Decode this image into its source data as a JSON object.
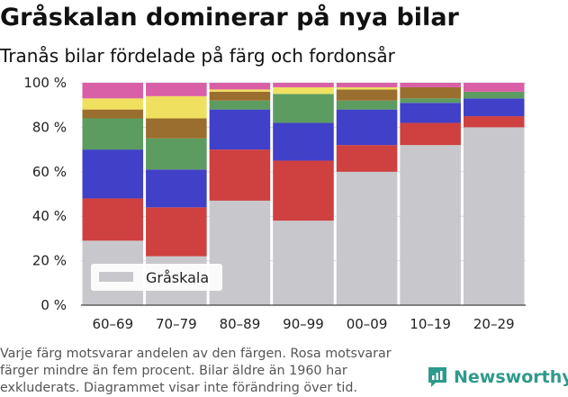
{
  "title": "Gråskalan dominerar på nya bilar",
  "subtitle": "Tranås bilar fördelade på färg och fordonsår",
  "note": "Varje färg motsvarar andelen av den färgen. Rosa motsvarar färger mindre än fem procent. Bilar äldre än 1960 har exkluderats. Diagrammet visar inte förändring över tid.",
  "brand": "Newsworthy",
  "chart_data": {
    "type": "bar",
    "stacked": true,
    "categories": [
      "60–69",
      "70–79",
      "80–89",
      "90–99",
      "00–09",
      "10–19",
      "20–29"
    ],
    "ylim": [
      0,
      100
    ],
    "yticks": [
      0,
      20,
      40,
      60,
      80,
      100
    ],
    "ytick_labels": [
      "0 %",
      "20 %",
      "40 %",
      "60 %",
      "80 %",
      "100 %"
    ],
    "grid": true,
    "legend": {
      "placement": "bottom-left",
      "entries": [
        "Gråskala"
      ]
    },
    "series": [
      {
        "name": "Gråskala",
        "color": "#c8c8cc",
        "values": [
          29,
          22,
          47,
          38,
          60,
          72,
          80
        ]
      },
      {
        "name": "",
        "color": "#cf4040",
        "values": [
          19,
          22,
          23,
          27,
          12,
          10,
          5
        ]
      },
      {
        "name": "",
        "color": "#4040c8",
        "values": [
          22,
          17,
          18,
          17,
          16,
          9,
          8
        ]
      },
      {
        "name": "",
        "color": "#5c9c60",
        "values": [
          14,
          14,
          4,
          13,
          4,
          2,
          3
        ]
      },
      {
        "name": "",
        "color": "#9a6e2e",
        "values": [
          4,
          9,
          4,
          0,
          5,
          5,
          0
        ]
      },
      {
        "name": "",
        "color": "#f0e060",
        "values": [
          5,
          10,
          1,
          3,
          1,
          0,
          0
        ]
      },
      {
        "name": "",
        "color": "#d95fa6",
        "values": [
          7,
          6,
          3,
          2,
          2,
          2,
          4
        ]
      }
    ]
  }
}
